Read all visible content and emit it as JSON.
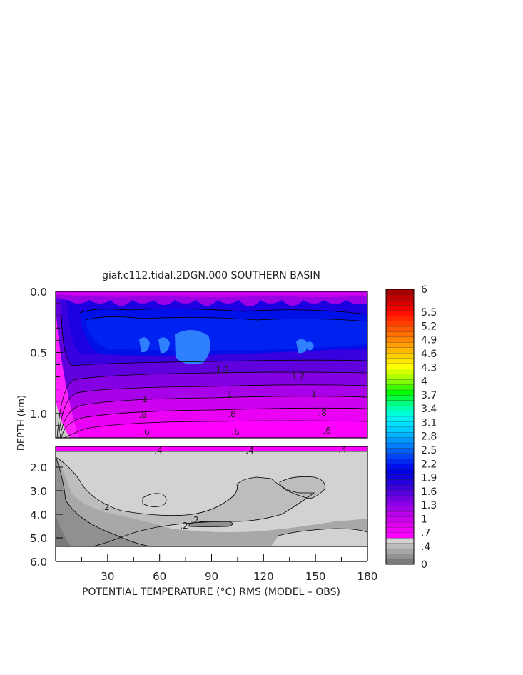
{
  "chart_data": {
    "type": "heatmap",
    "title": "giaf.c112.tidal.2DGN.000 SOUTHERN BASIN",
    "xlabel": "POTENTIAL TEMPERATURE (°C) RMS (MODEL – OBS)",
    "ylabel": "DEPTH (km)",
    "xlim": [
      0,
      180
    ],
    "x_ticks": [
      "30",
      "60",
      "90",
      "120",
      "150",
      "180"
    ],
    "upper_panel": {
      "ylim": [
        0.0,
        1.2
      ],
      "y_ticks": [
        "0.0",
        "0.5",
        "1.0"
      ],
      "contour_labels": [
        "1.2",
        "1.2",
        "1",
        "1",
        "1",
        ".8",
        ".8",
        ".8",
        ".6",
        ".6",
        ".6"
      ]
    },
    "lower_panel": {
      "ylim": [
        1.2,
        6.0
      ],
      "y_ticks": [
        "2.0",
        "3.0",
        "4.0",
        "5.0",
        "6.0"
      ],
      "contour_labels": [
        ".4",
        ".4",
        ".4",
        ".2",
        ".2",
        ".2"
      ]
    },
    "colorbar": {
      "labels": [
        "6",
        "5.5",
        "5.2",
        "4.9",
        "4.6",
        "4.3",
        "4",
        "3.7",
        "3.4",
        "3.1",
        "2.8",
        "2.5",
        "2.2",
        "1.9",
        "1.6",
        "1.3",
        "1",
        ".7",
        ".4",
        "0"
      ],
      "colors": [
        "#7a7a7a",
        "#909090",
        "#a6a6a6",
        "#bdbdbd",
        "#d2d2d2",
        "#ff00ff",
        "#f000f8",
        "#e000f0",
        "#cc00ee",
        "#b800ea",
        "#a000e6",
        "#8a00e4",
        "#7000e0",
        "#5600dc",
        "#3c00dc",
        "#2400dc",
        "#1000e0",
        "#0000e4",
        "#0010ec",
        "#0028f0",
        "#0044f4",
        "#0060f8",
        "#007cfc",
        "#0098ff",
        "#00b4ff",
        "#00ccff",
        "#00e0ff",
        "#00f0f0",
        "#00ffd8",
        "#00ffb0",
        "#00ff80",
        "#00ff40",
        "#00ff00",
        "#40ff00",
        "#80ff00",
        "#b0ff00",
        "#d8ff00",
        "#ffff00",
        "#ffe800",
        "#ffd000",
        "#ffb800",
        "#ffa000",
        "#ff8800",
        "#ff7000",
        "#ff5800",
        "#ff4000",
        "#ff2800",
        "#ff1000",
        "#f00000",
        "#d80000",
        "#c00000",
        "#a80000"
      ]
    }
  }
}
